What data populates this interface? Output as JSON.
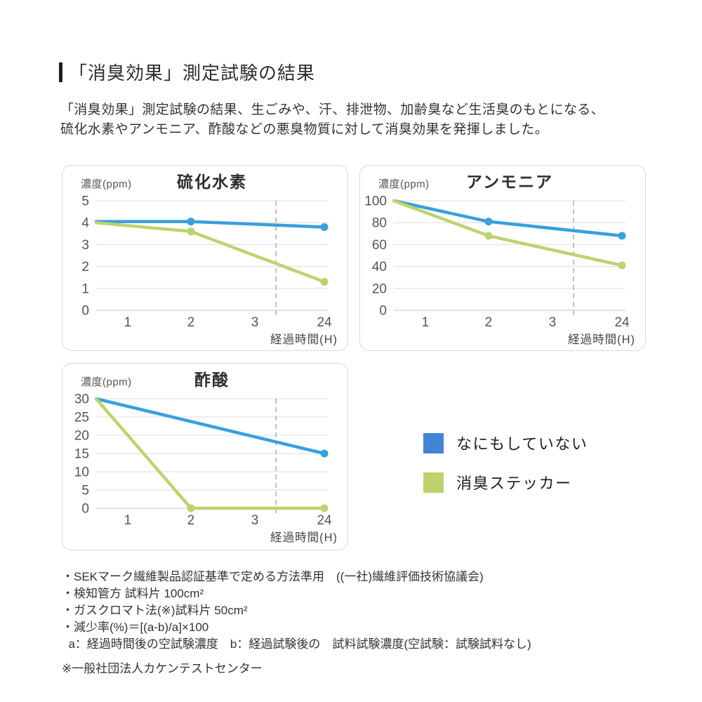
{
  "page": {
    "title": "「消臭効果」測定試験の結果",
    "intro_line1": "「消臭効果」測定試験の結果、生ごみや、汗、排泄物、加齢臭など生活臭のもとになる、",
    "intro_line2": "硫化水素やアンモニア、酢酸などの悪臭物質に対して消臭効果を発揮しました。"
  },
  "colors": {
    "line_blue": "#39a0dc",
    "line_green": "#bdd36e",
    "legend_blue": "#4285d6",
    "legend_green": "#bdd36e",
    "grid": "#e4e4e4",
    "axis": "#d2d2d2",
    "dash": "#b3b3b3",
    "panel_border": "#d9d9d9"
  },
  "legend": {
    "items": [
      {
        "label": "なにもしていない",
        "color": "#4285d6"
      },
      {
        "label": "消臭ステッカー",
        "color": "#bdd36e"
      }
    ]
  },
  "chart_data": [
    {
      "type": "line",
      "title": "硫化水素",
      "ylabel": "濃度(ppm)",
      "xlabel": "経過時間(H)",
      "ymax": 5,
      "yticks": [
        5,
        4,
        3,
        2,
        1,
        0
      ],
      "xticks": [
        {
          "label": "1",
          "f": 0.136
        },
        {
          "label": "2",
          "f": 0.409
        },
        {
          "label": "3",
          "f": 0.685
        },
        {
          "label": "24",
          "f": 0.985
        }
      ],
      "x_pos": {
        "0": 0,
        "1": 0.136,
        "2": 0.409,
        "3": 0.685,
        "24": 0.985
      },
      "axis_break_f": 0.776,
      "grid": true,
      "legend_position": "outside-right",
      "series": [
        {
          "name": "なにもしていない",
          "color": "#39a0dc",
          "points": [
            {
              "x": 0,
              "y": 4.05
            },
            {
              "x": 2,
              "y": 4.05,
              "dot": true
            },
            {
              "x": 24,
              "y": 3.8,
              "dot": true
            }
          ]
        },
        {
          "name": "消臭ステッカー",
          "color": "#bdd36e",
          "points": [
            {
              "x": 0,
              "y": 4.0
            },
            {
              "x": 2,
              "y": 3.6,
              "dot": true
            },
            {
              "x": 24,
              "y": 1.3,
              "dot": true
            }
          ]
        }
      ]
    },
    {
      "type": "line",
      "title": "アンモニア",
      "ylabel": "濃度(ppm)",
      "xlabel": "経過時間(H)",
      "ymax": 100,
      "yticks": [
        100,
        80,
        60,
        40,
        20,
        0
      ],
      "xticks": [
        {
          "label": "1",
          "f": 0.136
        },
        {
          "label": "2",
          "f": 0.409
        },
        {
          "label": "3",
          "f": 0.685
        },
        {
          "label": "24",
          "f": 0.985
        }
      ],
      "x_pos": {
        "0": 0,
        "1": 0.136,
        "2": 0.409,
        "3": 0.685,
        "24": 0.985
      },
      "axis_break_f": 0.776,
      "grid": true,
      "legend_position": "outside-right",
      "series": [
        {
          "name": "なにもしていない",
          "color": "#39a0dc",
          "points": [
            {
              "x": 0,
              "y": 100
            },
            {
              "x": 2,
              "y": 81,
              "dot": true
            },
            {
              "x": 24,
              "y": 68,
              "dot": true
            }
          ]
        },
        {
          "name": "消臭ステッカー",
          "color": "#bdd36e",
          "points": [
            {
              "x": 0,
              "y": 100
            },
            {
              "x": 2,
              "y": 68,
              "dot": true
            },
            {
              "x": 24,
              "y": 41,
              "dot": true
            }
          ]
        }
      ]
    },
    {
      "type": "line",
      "title": "酢酸",
      "ylabel": "濃度(ppm)",
      "xlabel": "経過時間(H)",
      "ymax": 30,
      "yticks": [
        30,
        25,
        20,
        15,
        10,
        5,
        0
      ],
      "xticks": [
        {
          "label": "1",
          "f": 0.136
        },
        {
          "label": "2",
          "f": 0.409
        },
        {
          "label": "3",
          "f": 0.685
        },
        {
          "label": "24",
          "f": 0.985
        }
      ],
      "x_pos": {
        "0": 0,
        "1": 0.136,
        "2": 0.409,
        "3": 0.685,
        "24": 0.985
      },
      "axis_break_f": 0.776,
      "grid": true,
      "legend_position": "outside-right",
      "series": [
        {
          "name": "なにもしていない",
          "color": "#39a0dc",
          "points": [
            {
              "x": 0,
              "y": 30
            },
            {
              "x": 24,
              "y": 15,
              "dot": true
            }
          ]
        },
        {
          "name": "消臭ステッカー",
          "color": "#bdd36e",
          "points": [
            {
              "x": 0,
              "y": 30
            },
            {
              "x": 2,
              "y": 0,
              "dot": true
            },
            {
              "x": 24,
              "y": 0,
              "dot": true
            }
          ]
        }
      ]
    }
  ],
  "footnotes": [
    "・SEKマーク繊維製品認証基準で定める方法準用　((一社)繊維評価技術協議会)",
    "・検知管方 試料片 100cm²",
    "・ガスクロマト法(※)試料片 50cm²",
    "・減少率(%)＝[(a-b)/a]×100",
    "  a：経過時間後の空試験濃度　b：経過試験後の　試料試験濃度(空試験：試験試料なし)"
  ],
  "bottom_note": "※一般社団法人カケンテストセンター"
}
